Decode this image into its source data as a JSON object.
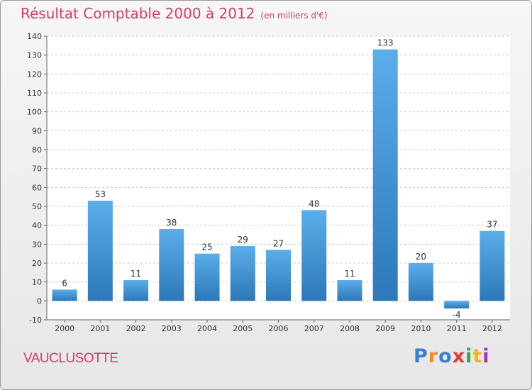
{
  "header": {
    "title": "Résultat Comptable 2000 à 2012",
    "unit": "(en milliers d'€)"
  },
  "footer": {
    "commune": "VAUCLUSOTTE",
    "logo": "Proxiti"
  },
  "colors": {
    "accent": "#d63c6b",
    "bar_light": "#5aaeea",
    "bar_dark": "#2d78b8"
  },
  "chart_data": {
    "type": "bar",
    "title": "Résultat Comptable 2000 à 2012",
    "subtitle": "(en milliers d'€)",
    "categories": [
      "2000",
      "2001",
      "2002",
      "2003",
      "2004",
      "2005",
      "2006",
      "2007",
      "2008",
      "2009",
      "2010",
      "2011",
      "2012"
    ],
    "values": [
      6,
      53,
      11,
      38,
      25,
      29,
      27,
      48,
      11,
      133,
      20,
      -4,
      37
    ],
    "ylim": [
      -10,
      140
    ],
    "yticks": [
      -10,
      0,
      10,
      20,
      30,
      40,
      50,
      60,
      70,
      80,
      90,
      100,
      110,
      120,
      130,
      140
    ],
    "grid": true,
    "xlabel": "",
    "ylabel": ""
  }
}
